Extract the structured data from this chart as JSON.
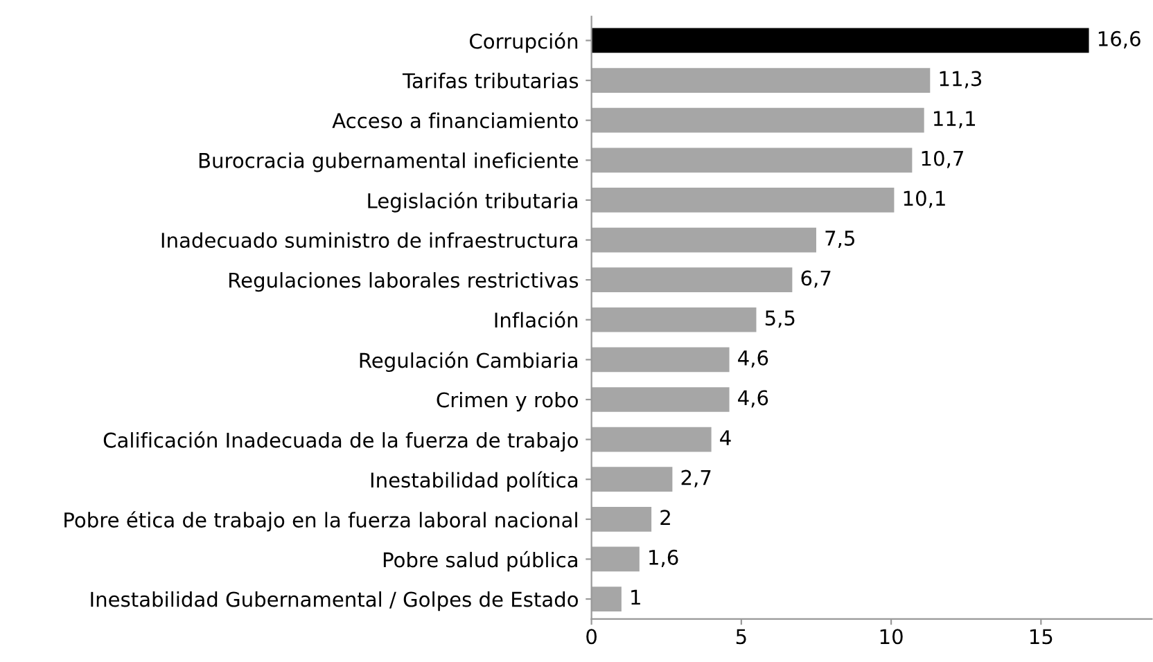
{
  "chart_data": {
    "type": "bar",
    "orientation": "horizontal",
    "categories": [
      "Corrupción",
      "Tarifas tributarias",
      "Acceso a financiamiento",
      "Burocracia gubernamental ineficiente",
      "Legislación tributaria",
      "Inadecuado suministro de infraestructura",
      "Regulaciones laborales restrictivas",
      "Inflación",
      "Regulación Cambiaria",
      "Crimen y robo",
      "Calificación Inadecuada de la fuerza de trabajo",
      "Inestabilidad política",
      "Pobre ética de trabajo en la fuerza laboral nacional",
      "Pobre salud pública",
      "Inestabilidad Gubernamental / Golpes de Estado"
    ],
    "values": [
      16.6,
      11.3,
      11.1,
      10.7,
      10.1,
      7.5,
      6.7,
      5.5,
      4.6,
      4.6,
      4,
      2.7,
      2,
      1.6,
      1
    ],
    "value_labels": [
      "16,6",
      "11,3",
      "11,1",
      "10,7",
      "10,1",
      "7,5",
      "6,7",
      "5,5",
      "4,6",
      "4,6",
      "4",
      "2,7",
      "2",
      "1,6",
      "1"
    ],
    "colors": [
      "#000000",
      "#a6a6a6",
      "#a6a6a6",
      "#a6a6a6",
      "#a6a6a6",
      "#a6a6a6",
      "#a6a6a6",
      "#a6a6a6",
      "#a6a6a6",
      "#a6a6a6",
      "#a6a6a6",
      "#a6a6a6",
      "#a6a6a6",
      "#a6a6a6",
      "#a6a6a6"
    ],
    "xlim": [
      0,
      18.7
    ],
    "xticks": [
      0,
      5,
      10,
      15
    ],
    "grid": false
  }
}
